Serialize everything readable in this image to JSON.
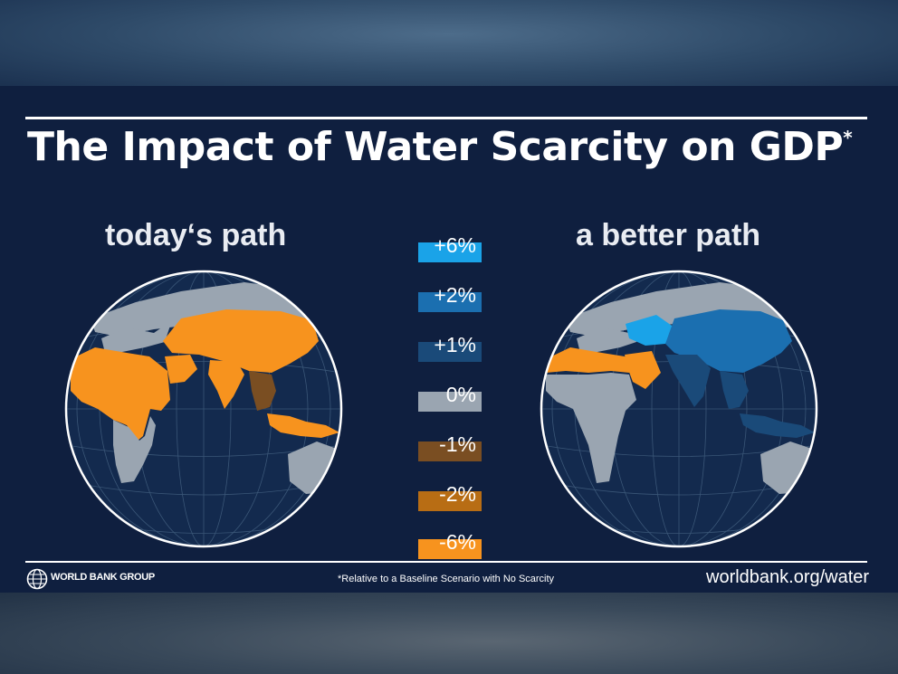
{
  "title": {
    "text": "The Impact of Water Scarcity on GDP",
    "mark": "*"
  },
  "maps": [
    {
      "heading": "today‘s path"
    },
    {
      "heading": "a better path"
    }
  ],
  "legend": [
    {
      "label": "+6%",
      "color": "#1aa3e8"
    },
    {
      "label": "+2%",
      "color": "#1b6fb0"
    },
    {
      "label": "+1%",
      "color": "#1a4a79"
    },
    {
      "label": "0%",
      "color": "#9aa5b1"
    },
    {
      "label": "-1%",
      "color": "#7a4e22"
    },
    {
      "label": "-2%",
      "color": "#b86d14"
    },
    {
      "label": "-6%",
      "color": "#f7931e"
    }
  ],
  "footer": {
    "logo_text": "WORLD BANK GROUP",
    "note": "*Relative to a Baseline Scenario with No Scarcity",
    "url": "worldbank.org/water"
  },
  "colors": {
    "background": "#0f1f3f",
    "ocean": "#132a4e",
    "land_neutral": "#9aa5b1",
    "gridline": "#3a5677"
  }
}
